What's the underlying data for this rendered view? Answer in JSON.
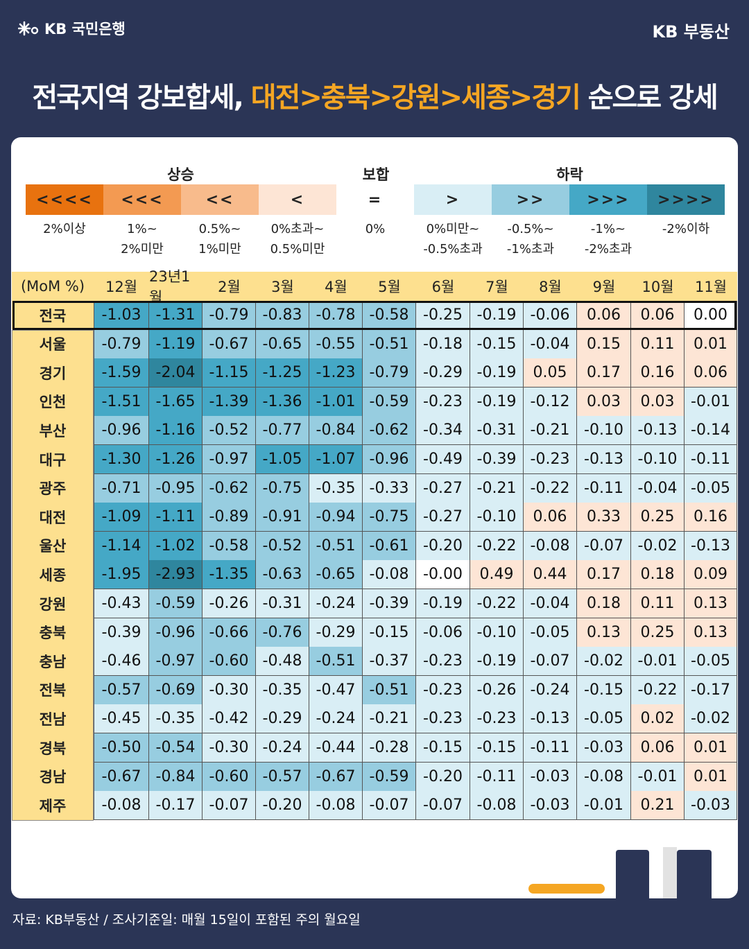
{
  "brand": {
    "bank": "KB 국민은행",
    "service": "KB 부동산"
  },
  "headline": {
    "part1": "전국지역 강보합세, ",
    "highlight": "대전>충북>강원>세종>경기",
    "part2": " 순으로 강세"
  },
  "legend": {
    "groups": {
      "rise": "상승",
      "flat": "보합",
      "fall": "하락"
    },
    "items": [
      {
        "symbol": "<<<<",
        "caption": "2%이상",
        "color": "#e8720f"
      },
      {
        "symbol": "<<<",
        "caption": "1%~\n2%미만",
        "color": "#f39a52"
      },
      {
        "symbol": "<<",
        "caption": "0.5%~\n1%미만",
        "color": "#f8bb8c"
      },
      {
        "symbol": "<",
        "caption": "0%초과~\n0.5%미만",
        "color": "#fde5d5"
      },
      {
        "symbol": "=",
        "caption": "0%",
        "color": "#ffffff"
      },
      {
        "symbol": ">",
        "caption": "0%미만~\n-0.5%초과",
        "color": "#d9eef5"
      },
      {
        "symbol": ">>",
        "caption": "-0.5%~\n-1%초과",
        "color": "#97cde0"
      },
      {
        "symbol": ">>>",
        "caption": "-1%~\n-2%초과",
        "color": "#45a8c6"
      },
      {
        "symbol": ">>>>",
        "caption": "-2%이하",
        "color": "#2f869e"
      }
    ]
  },
  "chart_data": {
    "type": "heatmap",
    "corner_label": "(MoM %)",
    "columns": [
      "12월",
      "23년1월",
      "2월",
      "3월",
      "4월",
      "5월",
      "6월",
      "7월",
      "8월",
      "9월",
      "10월",
      "11월"
    ],
    "rows": [
      {
        "region": "전국",
        "values": [
          -1.03,
          -1.31,
          -0.79,
          -0.83,
          -0.78,
          -0.58,
          -0.25,
          -0.19,
          -0.06,
          0.06,
          0.06,
          0.0
        ]
      },
      {
        "region": "서울",
        "values": [
          -0.79,
          -1.19,
          -0.67,
          -0.65,
          -0.55,
          -0.51,
          -0.18,
          -0.15,
          -0.04,
          0.15,
          0.11,
          0.01
        ]
      },
      {
        "region": "경기",
        "values": [
          -1.59,
          -2.04,
          -1.15,
          -1.25,
          -1.23,
          -0.79,
          -0.29,
          -0.19,
          0.05,
          0.17,
          0.16,
          0.06
        ]
      },
      {
        "region": "인천",
        "values": [
          -1.51,
          -1.65,
          -1.39,
          -1.36,
          -1.01,
          -0.59,
          -0.23,
          -0.19,
          -0.12,
          0.03,
          0.03,
          -0.01
        ]
      },
      {
        "region": "부산",
        "values": [
          -0.96,
          -1.16,
          -0.52,
          -0.77,
          -0.84,
          -0.62,
          -0.34,
          -0.31,
          -0.21,
          -0.1,
          -0.13,
          -0.14
        ]
      },
      {
        "region": "대구",
        "values": [
          -1.3,
          -1.26,
          -0.97,
          -1.05,
          -1.07,
          -0.96,
          -0.49,
          -0.39,
          -0.23,
          -0.13,
          -0.1,
          -0.11
        ]
      },
      {
        "region": "광주",
        "values": [
          -0.71,
          -0.95,
          -0.62,
          -0.75,
          -0.35,
          -0.33,
          -0.27,
          -0.21,
          -0.22,
          -0.11,
          -0.04,
          -0.05
        ]
      },
      {
        "region": "대전",
        "values": [
          -1.09,
          -1.11,
          -0.89,
          -0.91,
          -0.94,
          -0.75,
          -0.27,
          -0.1,
          0.06,
          0.33,
          0.25,
          0.16
        ]
      },
      {
        "region": "울산",
        "values": [
          -1.14,
          -1.02,
          -0.58,
          -0.52,
          -0.51,
          -0.61,
          -0.2,
          -0.22,
          -0.08,
          -0.07,
          -0.02,
          -0.13
        ]
      },
      {
        "region": "세종",
        "values": [
          -1.95,
          -2.93,
          -1.35,
          -0.63,
          -0.65,
          -0.08,
          -0.0,
          0.49,
          0.44,
          0.17,
          0.18,
          0.09
        ]
      },
      {
        "region": "강원",
        "values": [
          -0.43,
          -0.59,
          -0.26,
          -0.31,
          -0.24,
          -0.39,
          -0.19,
          -0.22,
          -0.04,
          0.18,
          0.11,
          0.13
        ]
      },
      {
        "region": "충북",
        "values": [
          -0.39,
          -0.96,
          -0.66,
          -0.76,
          -0.29,
          -0.15,
          -0.06,
          -0.1,
          -0.05,
          0.13,
          0.25,
          0.13
        ]
      },
      {
        "region": "충남",
        "values": [
          -0.46,
          -0.97,
          -0.6,
          -0.48,
          -0.51,
          -0.37,
          -0.23,
          -0.19,
          -0.07,
          -0.02,
          -0.01,
          -0.05
        ]
      },
      {
        "region": "전북",
        "values": [
          -0.57,
          -0.69,
          -0.3,
          -0.35,
          -0.47,
          -0.51,
          -0.23,
          -0.26,
          -0.24,
          -0.15,
          -0.22,
          -0.17
        ]
      },
      {
        "region": "전남",
        "values": [
          -0.45,
          -0.35,
          -0.42,
          -0.29,
          -0.24,
          -0.21,
          -0.23,
          -0.23,
          -0.13,
          -0.05,
          0.02,
          -0.02
        ]
      },
      {
        "region": "경북",
        "values": [
          -0.5,
          -0.54,
          -0.3,
          -0.24,
          -0.44,
          -0.28,
          -0.15,
          -0.15,
          -0.11,
          -0.03,
          0.06,
          0.01
        ]
      },
      {
        "region": "경남",
        "values": [
          -0.67,
          -0.84,
          -0.6,
          -0.57,
          -0.67,
          -0.59,
          -0.2,
          -0.11,
          -0.03,
          -0.08,
          -0.01,
          0.01
        ]
      },
      {
        "region": "제주",
        "values": [
          -0.08,
          -0.17,
          -0.07,
          -0.2,
          -0.08,
          -0.07,
          -0.07,
          -0.08,
          -0.03,
          -0.01,
          0.21,
          -0.03
        ]
      }
    ]
  },
  "source": "자료: KB부동산 / 조사기준일: 매월 15일이 포함된 주의 월요일"
}
